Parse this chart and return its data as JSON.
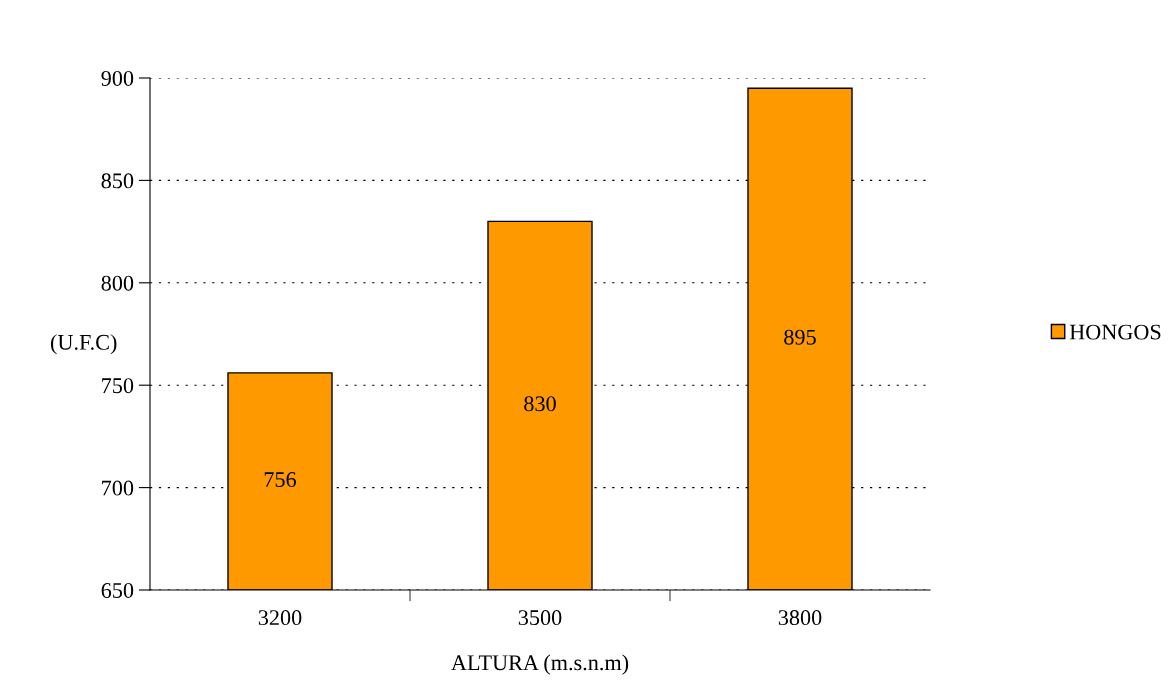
{
  "chart_data": {
    "type": "bar",
    "xlabel": "ALTURA (m.s.n.m)",
    "ylabel": "(U.F.C)",
    "categories": [
      "3200",
      "3500",
      "3800"
    ],
    "series": [
      {
        "name": "HONGOS",
        "color": "#ff9900",
        "values": [
          756,
          830,
          895
        ]
      }
    ],
    "ylim": [
      650,
      900
    ],
    "yticks": [
      650,
      700,
      750,
      800,
      850,
      900
    ],
    "grid": "y",
    "line_style": "dotted",
    "legend": "right",
    "data_labels": true
  }
}
